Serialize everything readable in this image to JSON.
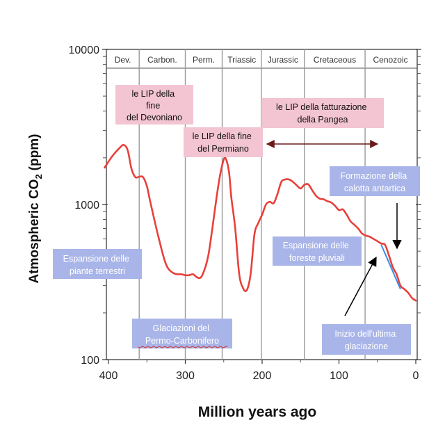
{
  "chart_data": {
    "type": "line",
    "xlabel": "Million years ago",
    "ylabel": "Atmospheric CO",
    "ylabel_sub": "2",
    "ylabel_unit": "(ppm)",
    "x_scale": "linear-reversed",
    "y_scale": "log",
    "xlim": [
      400,
      0
    ],
    "ylim": [
      100,
      10000
    ],
    "x_ticks": [
      400,
      300,
      200,
      100,
      0
    ],
    "y_ticks": [
      100,
      1000,
      10000
    ],
    "grid": "vertical period boundaries",
    "periods": [
      {
        "name": "Dev.",
        "start": 405,
        "end": 360
      },
      {
        "name": "Carbon.",
        "start": 360,
        "end": 300
      },
      {
        "name": "Perm.",
        "start": 300,
        "end": 252
      },
      {
        "name": "Triassic",
        "start": 252,
        "end": 201
      },
      {
        "name": "Jurassic",
        "start": 201,
        "end": 145
      },
      {
        "name": "Cretaceous",
        "start": 145,
        "end": 66
      },
      {
        "name": "Cenozoic",
        "start": 66,
        "end": 0
      }
    ],
    "series": [
      {
        "color": "#e8403a",
        "x": [
          405,
          395,
          385,
          380,
          375,
          370,
          365,
          360,
          355,
          350,
          345,
          335,
          325,
          315,
          305,
          300,
          295,
          290,
          285,
          280,
          275,
          270,
          265,
          260,
          255,
          250,
          247,
          243,
          240,
          235,
          230,
          225,
          220,
          215,
          210,
          205,
          200,
          195,
          190,
          185,
          180,
          175,
          170,
          165,
          160,
          155,
          150,
          145,
          140,
          135,
          130,
          125,
          120,
          115,
          110,
          105,
          100,
          95,
          90,
          85,
          80,
          75,
          70,
          65,
          60,
          55,
          50,
          45,
          40,
          35,
          30,
          25,
          20,
          15,
          10,
          5,
          0
        ],
        "values": [
          1730,
          2050,
          2330,
          2420,
          2240,
          1700,
          1500,
          1510,
          1500,
          1310,
          1010,
          620,
          410,
          360,
          355,
          350,
          350,
          355,
          340,
          338,
          380,
          470,
          690,
          1050,
          1520,
          1950,
          1960,
          1600,
          1100,
          700,
          360,
          290,
          280,
          355,
          640,
          760,
          860,
          1000,
          1040,
          1020,
          1170,
          1400,
          1450,
          1450,
          1400,
          1330,
          1270,
          1340,
          1350,
          1240,
          1140,
          1090,
          1080,
          1050,
          1030,
          980,
          920,
          930,
          860,
          780,
          740,
          700,
          650,
          630,
          620,
          600,
          580,
          560,
          550,
          470,
          395,
          355,
          300,
          285,
          270,
          250,
          240
        ]
      }
    ],
    "overlay_segment": {
      "color": "#3a8ee6",
      "x": [
        45,
        20
      ],
      "values": [
        550,
        285
      ]
    }
  },
  "annotations": {
    "lip_devoniano": [
      "le LIP della",
      "fine",
      "del Devoniano"
    ],
    "lip_pangea": [
      "le LIP della fatturazione",
      "della Pangea"
    ],
    "lip_permiano": [
      "le LIP della fine",
      "del Permiano"
    ],
    "calotta": [
      "Formazione della",
      "calotta antartica"
    ],
    "piante": [
      "Espansione delle",
      "piante terrestri"
    ],
    "foreste": [
      "Espansione delle",
      "foreste pluviali"
    ],
    "glaciazioni": [
      "Glaciazioni del",
      "Permo-Carbonifero"
    ],
    "glaciazione": [
      "Inizio dell'ultima",
      "glaciazione"
    ]
  },
  "colors": {
    "pink_box": "#f3c4d1",
    "blue_box": "#a9b5e8",
    "line": "#e8403a",
    "arrow_dark": "#6b1a1a"
  }
}
